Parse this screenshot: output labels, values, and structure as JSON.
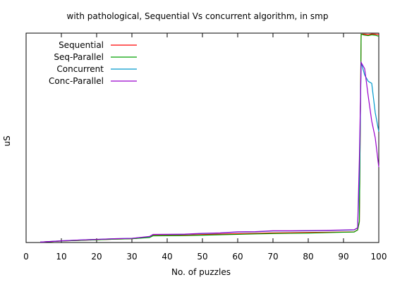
{
  "chart_data": {
    "type": "line",
    "title": "with pathological, Sequential Vs concurrent algorithm, in smp",
    "xlabel": "No. of puzzles",
    "ylabel": "uS",
    "xlim": [
      0,
      100
    ],
    "ylim": [
      0,
      100
    ],
    "x_ticks": [
      0,
      10,
      20,
      30,
      40,
      50,
      60,
      70,
      80,
      90,
      100
    ],
    "y_tick_labels_visible": false,
    "grid": false,
    "legend_position": "top-left",
    "series": [
      {
        "name": "Sequential",
        "color": "#ff0000",
        "points": [
          [
            4,
            0.2
          ],
          [
            10,
            0.7
          ],
          [
            15,
            1.0
          ],
          [
            20,
            1.3
          ],
          [
            25,
            1.6
          ],
          [
            30,
            1.8
          ],
          [
            35,
            2.5
          ],
          [
            36,
            3.4
          ],
          [
            45,
            3.5
          ],
          [
            50,
            3.8
          ],
          [
            55,
            4.0
          ],
          [
            60,
            4.2
          ],
          [
            65,
            4.4
          ],
          [
            70,
            4.6
          ],
          [
            75,
            4.7
          ],
          [
            80,
            4.8
          ],
          [
            85,
            4.9
          ],
          [
            90,
            5.0
          ],
          [
            93,
            5.1
          ],
          [
            94,
            6.0
          ],
          [
            94.5,
            10
          ],
          [
            95,
            99.5
          ],
          [
            96,
            99.5
          ],
          [
            97,
            99.2
          ],
          [
            98,
            99.6
          ],
          [
            99,
            99.5
          ],
          [
            100,
            99.3
          ]
        ]
      },
      {
        "name": "Seq-Parallel",
        "color": "#00a000",
        "points": [
          [
            4,
            0.2
          ],
          [
            10,
            0.7
          ],
          [
            15,
            1.0
          ],
          [
            20,
            1.3
          ],
          [
            25,
            1.6
          ],
          [
            30,
            1.8
          ],
          [
            35,
            2.4
          ],
          [
            36,
            3.2
          ],
          [
            45,
            3.3
          ],
          [
            50,
            3.5
          ],
          [
            55,
            3.7
          ],
          [
            60,
            3.9
          ],
          [
            65,
            4.1
          ],
          [
            70,
            4.3
          ],
          [
            75,
            4.4
          ],
          [
            80,
            4.5
          ],
          [
            85,
            4.7
          ],
          [
            90,
            4.9
          ],
          [
            93,
            5.0
          ],
          [
            94,
            6.0
          ],
          [
            94.5,
            10
          ],
          [
            95,
            99.5
          ],
          [
            96,
            99.0
          ],
          [
            97,
            98.8
          ],
          [
            98,
            99.2
          ],
          [
            99,
            99.0
          ],
          [
            100,
            98.5
          ]
        ]
      },
      {
        "name": "Concurrent",
        "color": "#0099cc",
        "points": [
          [
            4,
            0.2
          ],
          [
            10,
            0.8
          ],
          [
            15,
            1.2
          ],
          [
            20,
            1.5
          ],
          [
            25,
            1.8
          ],
          [
            30,
            2.0
          ],
          [
            35,
            2.8
          ],
          [
            36,
            3.8
          ],
          [
            45,
            3.9
          ],
          [
            50,
            4.3
          ],
          [
            55,
            4.5
          ],
          [
            60,
            5.0
          ],
          [
            65,
            5.1
          ],
          [
            70,
            5.5
          ],
          [
            75,
            5.5
          ],
          [
            80,
            5.6
          ],
          [
            85,
            5.7
          ],
          [
            90,
            5.9
          ],
          [
            93,
            6.0
          ],
          [
            94,
            7.0
          ],
          [
            94.5,
            30
          ],
          [
            95,
            86
          ],
          [
            96,
            80
          ],
          [
            97,
            77
          ],
          [
            98,
            76
          ],
          [
            99,
            62
          ],
          [
            100,
            53
          ]
        ]
      },
      {
        "name": "Conc-Parallel",
        "color": "#9900cc",
        "points": [
          [
            4,
            0.2
          ],
          [
            10,
            0.8
          ],
          [
            15,
            1.2
          ],
          [
            20,
            1.5
          ],
          [
            25,
            1.8
          ],
          [
            30,
            2.0
          ],
          [
            35,
            2.9
          ],
          [
            36,
            3.9
          ],
          [
            45,
            4.0
          ],
          [
            50,
            4.4
          ],
          [
            55,
            4.6
          ],
          [
            60,
            5.1
          ],
          [
            65,
            5.2
          ],
          [
            70,
            5.6
          ],
          [
            75,
            5.6
          ],
          [
            80,
            5.7
          ],
          [
            85,
            5.8
          ],
          [
            90,
            6.0
          ],
          [
            93,
            6.1
          ],
          [
            94,
            7.0
          ],
          [
            94.5,
            40
          ],
          [
            95,
            86
          ],
          [
            96,
            83
          ],
          [
            97,
            70
          ],
          [
            98,
            58
          ],
          [
            99,
            50
          ],
          [
            100,
            36
          ]
        ]
      }
    ]
  }
}
